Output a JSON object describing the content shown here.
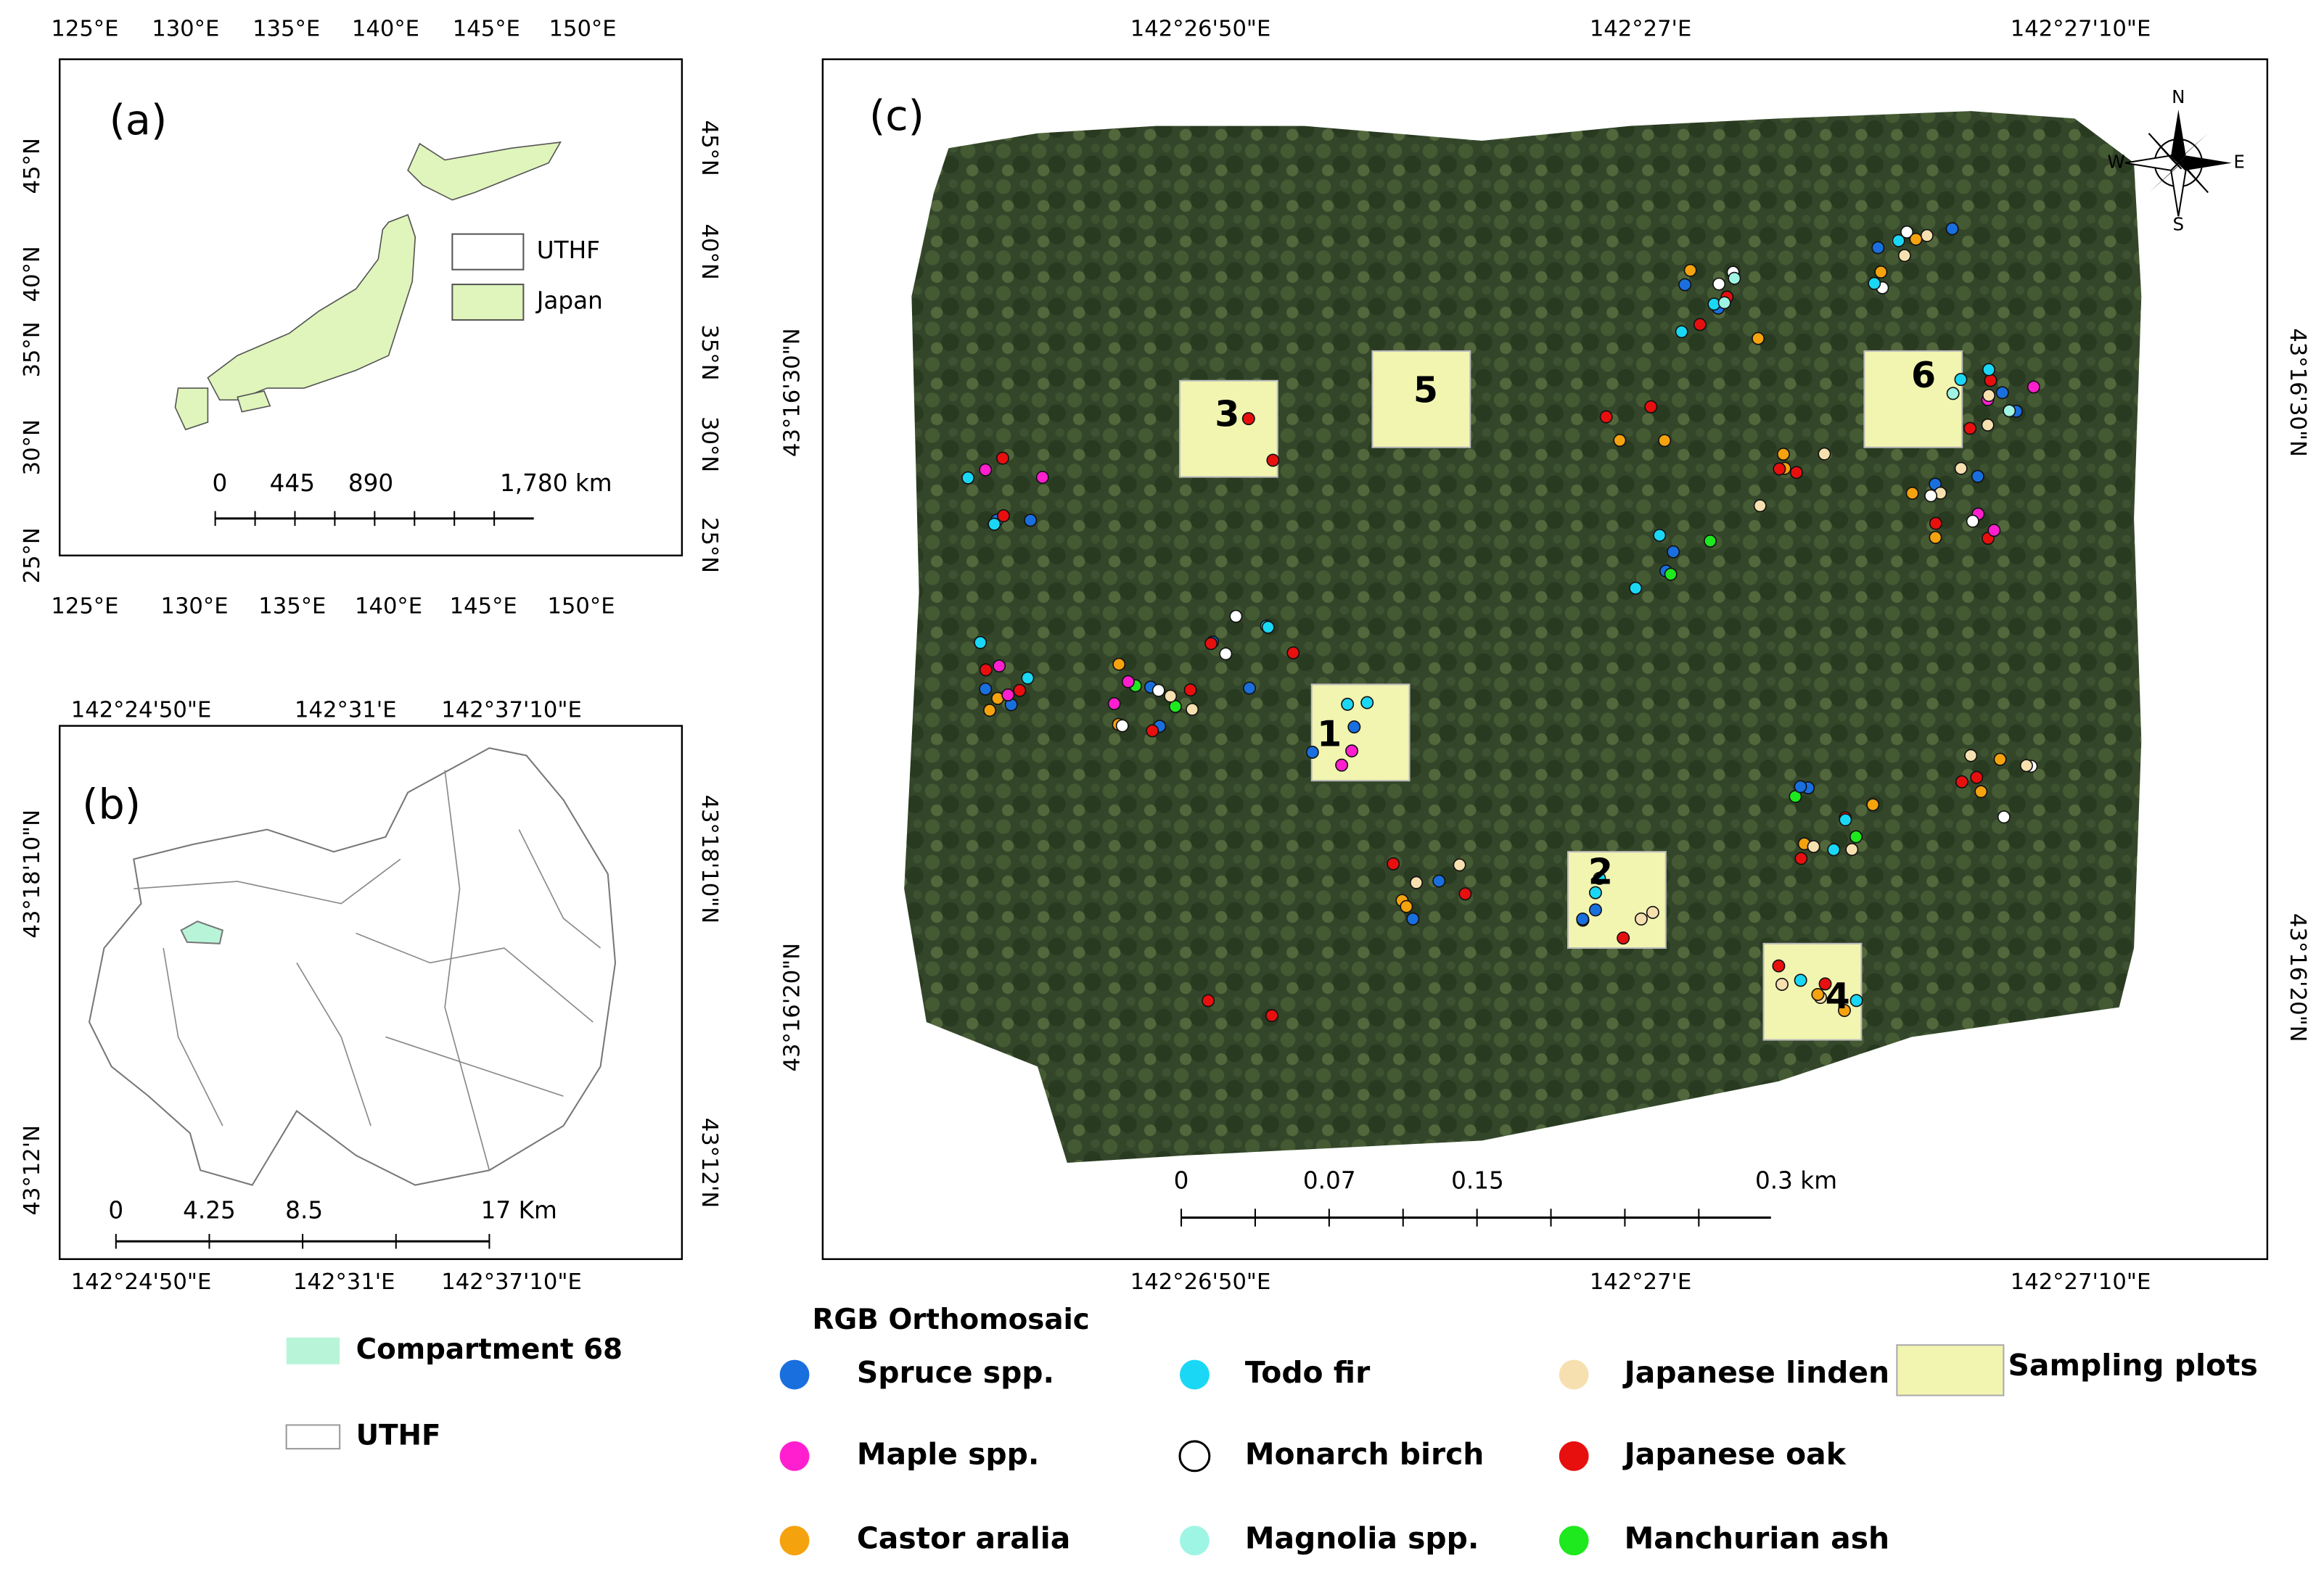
{
  "panel_a": {
    "label": "(a)",
    "top_ticks": [
      "125°E",
      "130°E",
      "135°E",
      "140°E",
      "145°E",
      "150°E"
    ],
    "bottom_ticks": [
      "125°E",
      "130°E",
      "135°E",
      "140°E",
      "145°E",
      "150°E"
    ],
    "left_ticks": [
      "45°N",
      "40°N",
      "35°N",
      "30°N",
      "25°N"
    ],
    "right_ticks": [
      "45°N",
      "40°N",
      "35°N",
      "30°N",
      "25°N"
    ],
    "legend": [
      "UTHF",
      "Japan"
    ],
    "scale": [
      "0",
      "445",
      "890",
      "1,780 km"
    ]
  },
  "panel_b": {
    "label": "(b)",
    "top_ticks": [
      "142°24'50\"E",
      "142°31'E",
      "142°37'10\"E"
    ],
    "bottom_ticks": [
      "142°24'50\"E",
      "142°31'E",
      "142°37'10\"E"
    ],
    "left_ticks": [
      "43°18'10\"N",
      "43°12'N"
    ],
    "right_ticks": [
      "43°18'10\"N",
      "43°12'N"
    ],
    "scale": [
      "0",
      "4.25",
      "8.5",
      "17 Km"
    ],
    "legend": [
      "Compartment 68",
      "UTHF"
    ]
  },
  "panel_c": {
    "label": "(c)",
    "top_ticks": [
      "142°26'50\"E",
      "142°27'E",
      "142°27'10\"E"
    ],
    "bottom_ticks": [
      "142°26'50\"E",
      "142°27'E",
      "142°27'10\"E"
    ],
    "left_ticks": [
      "43°16'30\"N",
      "43°16'20\"N"
    ],
    "right_ticks": [
      "43°16'30\"N",
      "43°16'20\"N"
    ],
    "scale": [
      "0",
      "0.07",
      "0.15",
      "0.3 km"
    ],
    "plots": [
      "1",
      "2",
      "3",
      "4",
      "5",
      "6"
    ],
    "compass": [
      "N",
      "S",
      "W",
      "E"
    ],
    "legend_title": "RGB Orthomosaic",
    "legend": [
      {
        "name": "Spruce spp.",
        "color": "#1a6fdf"
      },
      {
        "name": "Maple spp.",
        "color": "#ff1fcf"
      },
      {
        "name": "Castor aralia",
        "color": "#f5a20f"
      },
      {
        "name": "Todo fir",
        "color": "#1ad8f5"
      },
      {
        "name": "Monarch birch",
        "color": "#ffffff"
      },
      {
        "name": "Magnolia spp.",
        "color": "#9ff5e3"
      },
      {
        "name": "Japanese linden",
        "color": "#f7e0b0"
      },
      {
        "name": "Japanese oak",
        "color": "#e80f0f"
      },
      {
        "name": "Manchurian ash",
        "color": "#1ee81e"
      }
    ],
    "plot_legend": "Sampling plots"
  }
}
